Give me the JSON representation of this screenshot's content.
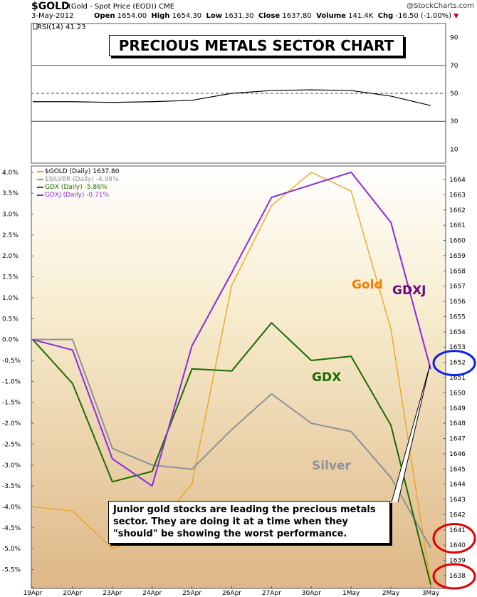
{
  "header": {
    "symbol": "$GOLD",
    "subtitle": "(Gold - Spot Price (EOD)) CME",
    "source": "@StockCharts.com",
    "date": "3-May-2012",
    "open_label": "Open",
    "open": "1654.00",
    "high_label": "High",
    "high": "1654.30",
    "low_label": "Low",
    "low": "1631.30",
    "close_label": "Close",
    "close": "1637.80",
    "volume_label": "Volume",
    "volume": "141.4K",
    "chg_label": "Chg",
    "chg": "-16.50 (-1.00%)"
  },
  "title": "PRECIOUS METALS SECTOR CHART",
  "note": "Junior gold stocks are leading the precious metals sector.  They are doing it at a time when they \"should\" be showing the worst performance.",
  "annotations": {
    "gold": "Gold",
    "gdxj": "GDXJ",
    "gdx": "GDX",
    "silver": "Silver"
  },
  "colors": {
    "gold": "#e8a317",
    "silver": "#8a929a",
    "gdx": "#1b6b00",
    "gdxj": "#8a2be2",
    "rsi": "#000000"
  },
  "chart_data": [
    {
      "type": "line",
      "title": "RSI(14) 41.23",
      "x": [
        "19Apr",
        "20Apr",
        "23Apr",
        "24Apr",
        "25Apr",
        "26Apr",
        "27Apr",
        "30Apr",
        "1May",
        "2May",
        "3May"
      ],
      "series": [
        {
          "name": "RSI(14) 41.23",
          "values": [
            44,
            44,
            43.5,
            44,
            45,
            50,
            52,
            52.5,
            52,
            48,
            41.23
          ]
        }
      ],
      "ylim": [
        0,
        100
      ],
      "y_ticks": [
        90,
        70,
        50,
        30,
        10
      ],
      "reference_lines": [
        70,
        50,
        30
      ]
    },
    {
      "type": "line",
      "x": [
        "19Apr",
        "20Apr",
        "23Apr",
        "24Apr",
        "25Apr",
        "26Apr",
        "27Apr",
        "30Apr",
        "1May",
        "2May",
        "3May"
      ],
      "series": [
        {
          "name": "$GOLD (Daily) 1637.80",
          "key": "gold",
          "values": [
            -4.0,
            -4.1,
            -5.0,
            -4.6,
            -3.45,
            1.3,
            3.2,
            4.0,
            3.55,
            0.25,
            -5.85
          ]
        },
        {
          "name": "$SILVER (Daily) -4.98%",
          "key": "silver",
          "values": [
            0.0,
            0.0,
            -2.6,
            -3.0,
            -3.1,
            -2.15,
            -1.3,
            -2.0,
            -2.2,
            -3.3,
            -4.98
          ]
        },
        {
          "name": "GDX (Daily) -5.86%",
          "key": "gdx",
          "values": [
            0.0,
            -1.05,
            -3.4,
            -3.15,
            -0.7,
            -0.75,
            0.4,
            -0.5,
            -0.4,
            -2.05,
            -5.86
          ]
        },
        {
          "name": "GDXJ (Daily) -0.71%",
          "key": "gdxj",
          "values": [
            0.0,
            -0.25,
            -2.85,
            -3.5,
            -0.15,
            1.6,
            3.4,
            3.7,
            4.0,
            2.8,
            -0.71
          ]
        }
      ],
      "y_left_ticks": [
        "4.0%",
        "3.5%",
        "3.0%",
        "2.5%",
        "2.0%",
        "1.5%",
        "1.0%",
        "0.5%",
        "0.0%",
        "-0.5%",
        "-1.0%",
        "-1.5%",
        "-2.0%",
        "-2.5%",
        "-3.0%",
        "-3.5%",
        "-4.0%",
        "-4.5%",
        "-5.0%",
        "-5.5%"
      ],
      "y_right_ticks": [
        "1664",
        "1663",
        "1662",
        "1661",
        "1660",
        "1659",
        "1658",
        "1657",
        "1656",
        "1655",
        "1654",
        "1653",
        "1652",
        "1651",
        "1650",
        "1649",
        "1648",
        "1647",
        "1646",
        "1645",
        "1644",
        "1643",
        "1642",
        "1641",
        "1640",
        "1639",
        "1638"
      ],
      "highlighted_right_values": [
        {
          "value": "1652",
          "color": "#0000ee"
        },
        {
          "value": "1641",
          "color": "#e00000"
        },
        {
          "value": "1640",
          "color": "#e00000"
        },
        {
          "value": "1638",
          "color": "#e00000"
        }
      ],
      "ylim": [
        -5.95,
        4.15
      ],
      "grid": false,
      "legend": "top-left"
    }
  ]
}
